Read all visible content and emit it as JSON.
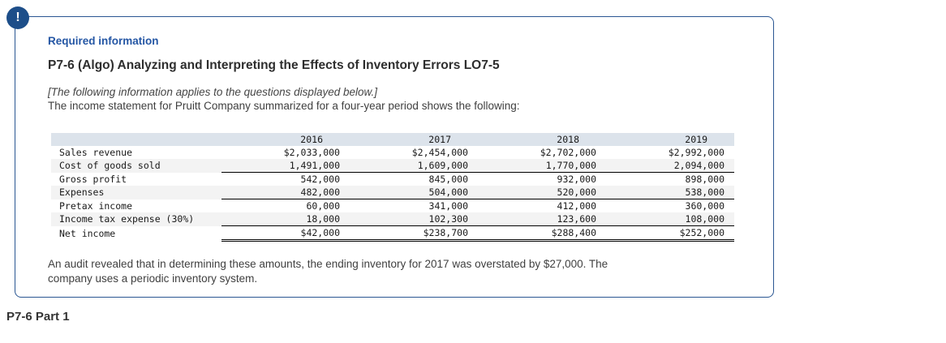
{
  "alert": {
    "icon_glyph": "!"
  },
  "header": {
    "required_label": "Required information",
    "title": "P7-6 (Algo) Analyzing and Interpreting the Effects of Inventory Errors LO7-5"
  },
  "intro": {
    "applies_note": "[The following information applies to the questions displayed below.]",
    "description": "The income statement for Pruitt Company summarized for a four-year period shows the following:"
  },
  "income_statement": {
    "years": [
      "2016",
      "2017",
      "2018",
      "2019"
    ],
    "rows": [
      {
        "label": "Sales revenue",
        "values": [
          "$2,033,000",
          "$2,454,000",
          "$2,702,000",
          "$2,992,000"
        ],
        "underline": "none"
      },
      {
        "label": "Cost of goods sold",
        "values": [
          "1,491,000",
          "1,609,000",
          "1,770,000",
          "2,094,000"
        ],
        "underline": "single"
      },
      {
        "label": "Gross profit",
        "values": [
          "542,000",
          "845,000",
          "932,000",
          "898,000"
        ],
        "underline": "none"
      },
      {
        "label": "Expenses",
        "values": [
          "482,000",
          "504,000",
          "520,000",
          "538,000"
        ],
        "underline": "single"
      },
      {
        "label": "Pretax income",
        "values": [
          "60,000",
          "341,000",
          "412,000",
          "360,000"
        ],
        "underline": "none"
      },
      {
        "label": "Income tax expense (30%)",
        "values": [
          "18,000",
          "102,300",
          "123,600",
          "108,000"
        ],
        "underline": "single"
      },
      {
        "label": "Net income",
        "values": [
          "$42,000",
          "$238,700",
          "$288,400",
          "$252,000"
        ],
        "underline": "double"
      }
    ]
  },
  "audit_note": {
    "lines": [
      "An audit revealed that in determining these amounts, the ending inventory for 2017 was overstated by $27,000. The",
      "company uses a periodic inventory system."
    ]
  },
  "part_title": "P7-6 Part 1",
  "colors": {
    "accent_blue": "#2456a4",
    "box_border": "#2a5692",
    "icon_bg": "#1d4e89",
    "table_header_bg": "#dce3eb",
    "row_stripe_bg": "#f3f3f3",
    "rule_black": "#000000"
  }
}
